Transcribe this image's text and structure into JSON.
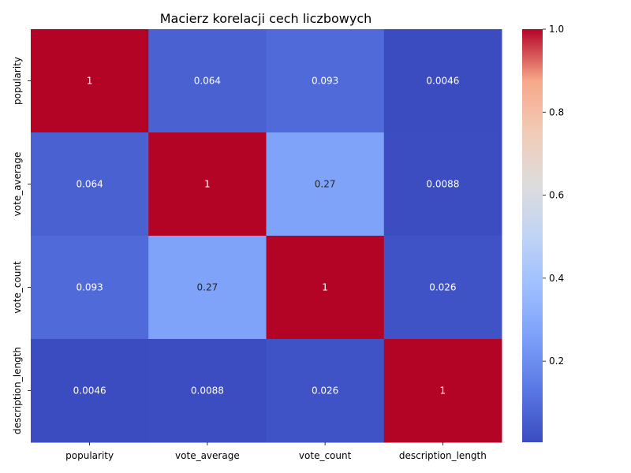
{
  "chart_data": {
    "type": "heatmap",
    "title": "Macierz korelacji cech liczbowych",
    "xlabel": "",
    "ylabel": "",
    "rows": [
      "popularity",
      "vote_average",
      "vote_count",
      "description_length"
    ],
    "columns": [
      "popularity",
      "vote_average",
      "vote_count",
      "description_length"
    ],
    "values": [
      [
        1,
        0.064,
        0.093,
        0.0046
      ],
      [
        0.064,
        1,
        0.27,
        0.0088
      ],
      [
        0.093,
        0.27,
        1,
        0.026
      ],
      [
        0.0046,
        0.0088,
        0.026,
        1
      ]
    ],
    "cell_labels": [
      [
        "1",
        "0.064",
        "0.093",
        "0.0046"
      ],
      [
        "0.064",
        "1",
        "0.27",
        "0.0088"
      ],
      [
        "0.093",
        "0.27",
        "1",
        "0.026"
      ],
      [
        "0.0046",
        "0.0088",
        "0.026",
        "1"
      ]
    ],
    "colormap": "coolwarm",
    "color_range": [
      0.0046,
      1.0
    ],
    "colorbar": {
      "placement": "right",
      "ticks": [
        0.2,
        0.4,
        0.6,
        0.8,
        1.0
      ],
      "tick_labels": [
        "0.2",
        "0.4",
        "0.6",
        "0.8",
        "1.0"
      ]
    },
    "grid": false
  }
}
